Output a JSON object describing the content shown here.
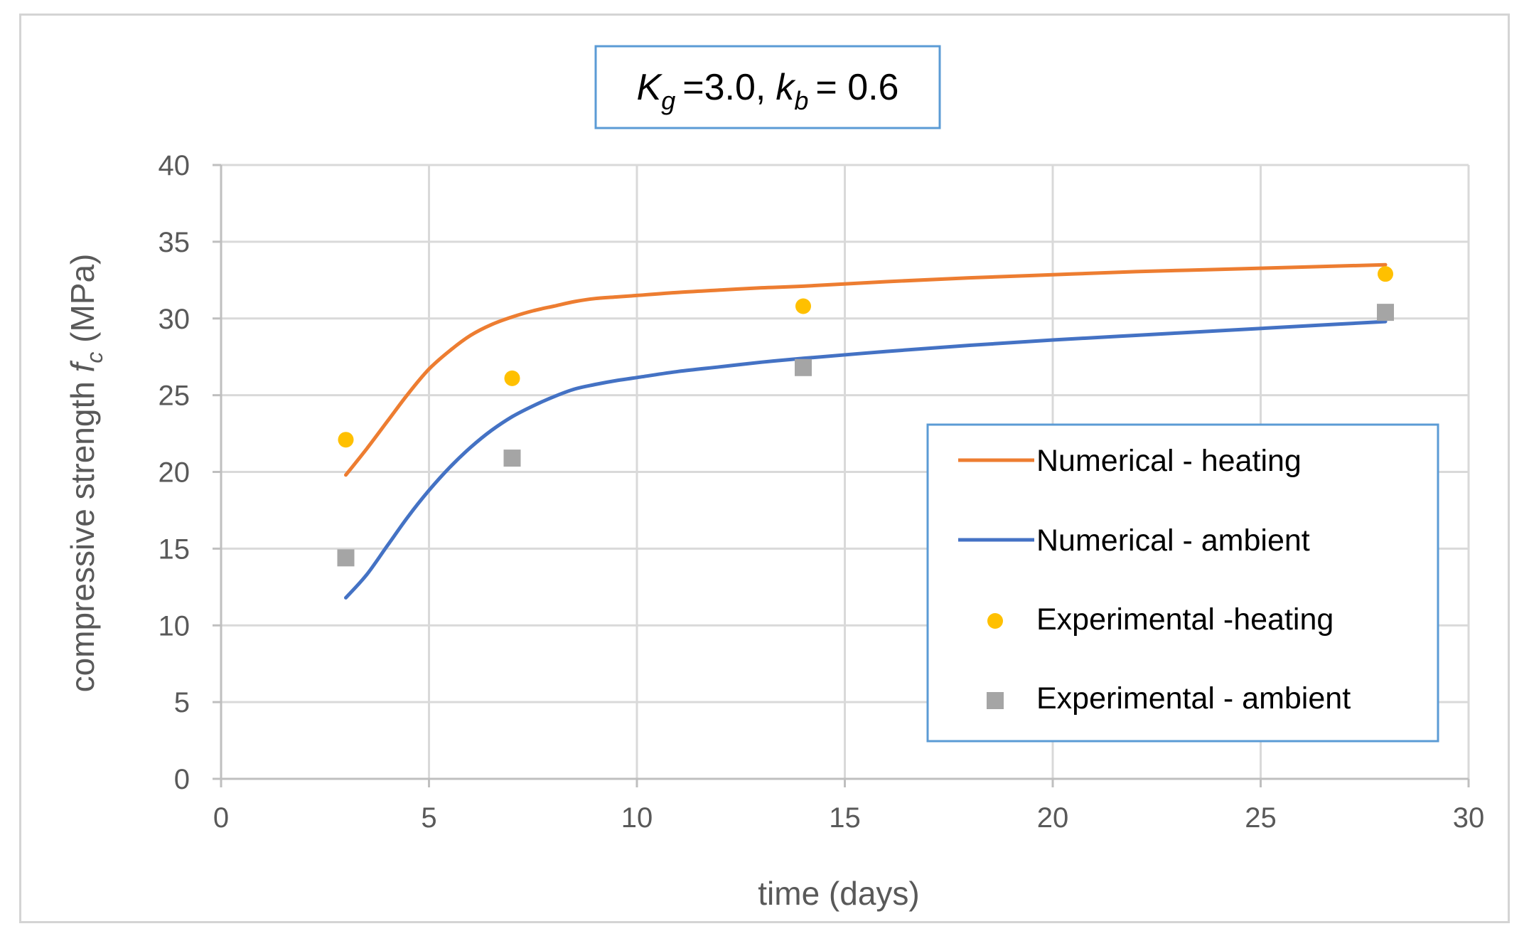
{
  "chart_data": {
    "type": "line",
    "title": {
      "k_g_symbol": "K",
      "k_g_sub": "g",
      "k_g_value": "=3.0,",
      "k_b_symbol": "k",
      "k_b_sub": "b",
      "k_b_value": "= 0.6"
    },
    "xlabel": "time (days)",
    "ylabel_prefix": "compressive strength ",
    "ylabel_symbol": "f",
    "ylabel_sub": "c",
    "ylabel_suffix": " (MPa)",
    "xlim": [
      0,
      30
    ],
    "ylim": [
      0,
      40
    ],
    "xticks": [
      0,
      5,
      10,
      15,
      20,
      25,
      30
    ],
    "yticks": [
      0,
      5,
      10,
      15,
      20,
      25,
      30,
      35,
      40
    ],
    "xtick_labels": [
      "0",
      "5",
      "10",
      "15",
      "20",
      "25",
      "30"
    ],
    "ytick_labels": [
      "0",
      "5",
      "10",
      "15",
      "20",
      "25",
      "30",
      "35",
      "40"
    ],
    "grid": true,
    "legend_position": "center-right",
    "series": [
      {
        "name": "Numerical - heating",
        "kind": "line",
        "color": "#ed7d31",
        "x": [
          3,
          3.5,
          4,
          4.5,
          5,
          5.5,
          6,
          6.5,
          7,
          7.5,
          8,
          8.5,
          9,
          9.5,
          10,
          11,
          12,
          13,
          14,
          16,
          18,
          20,
          22,
          24,
          26,
          28
        ],
        "y": [
          19.8,
          21.5,
          23.3,
          25.1,
          26.7,
          27.9,
          28.9,
          29.6,
          30.1,
          30.5,
          30.8,
          31.1,
          31.3,
          31.4,
          31.5,
          31.7,
          31.85,
          32.0,
          32.1,
          32.4,
          32.65,
          32.85,
          33.05,
          33.2,
          33.35,
          33.5
        ]
      },
      {
        "name": "Numerical - ambient",
        "kind": "line",
        "color": "#4472c4",
        "x": [
          3,
          3.5,
          4,
          4.5,
          5,
          5.5,
          6,
          6.5,
          7,
          7.5,
          8,
          8.5,
          9,
          9.5,
          10,
          11,
          12,
          13,
          14,
          16,
          18,
          20,
          22,
          24,
          26,
          28
        ],
        "y": [
          11.8,
          13.3,
          15.2,
          17.1,
          18.8,
          20.3,
          21.6,
          22.7,
          23.6,
          24.3,
          24.9,
          25.4,
          25.7,
          25.95,
          26.15,
          26.55,
          26.85,
          27.15,
          27.4,
          27.85,
          28.25,
          28.6,
          28.9,
          29.2,
          29.5,
          29.8
        ]
      },
      {
        "name": "Experimental -heating",
        "kind": "scatter",
        "marker": "circle",
        "color": "#ffc000",
        "x": [
          3,
          7,
          14,
          28
        ],
        "y": [
          22.1,
          26.1,
          30.8,
          32.9
        ]
      },
      {
        "name": "Experimental - ambient",
        "kind": "scatter",
        "marker": "square",
        "color": "#a5a5a5",
        "x": [
          3,
          7,
          14,
          28
        ],
        "y": [
          14.4,
          20.9,
          26.8,
          30.4
        ]
      }
    ]
  }
}
